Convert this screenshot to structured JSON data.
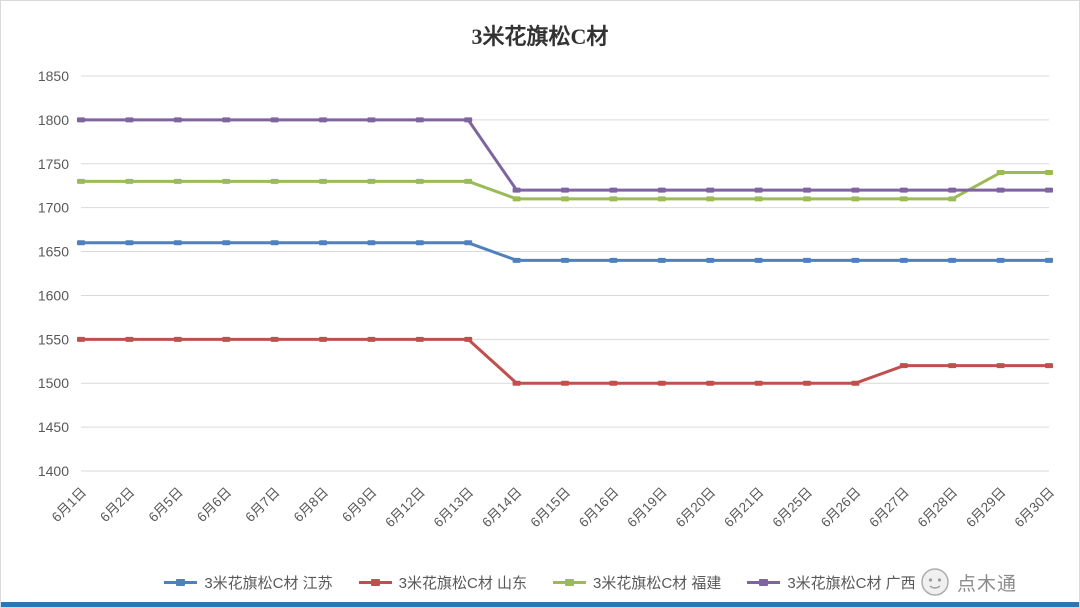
{
  "chart_data": {
    "type": "line",
    "title": "3米花旗松C材",
    "categories": [
      "6月1日",
      "6月2日",
      "6月5日",
      "6月6日",
      "6月7日",
      "6月8日",
      "6月9日",
      "6月12日",
      "6月13日",
      "6月14日",
      "6月15日",
      "6月16日",
      "6月19日",
      "6月20日",
      "6月21日",
      "6月25日",
      "6月26日",
      "6月27日",
      "6月28日",
      "6月29日",
      "6月30日"
    ],
    "series": [
      {
        "name": "3米花旗松C材 江苏",
        "color": "#4F81BD",
        "values": [
          1660,
          1660,
          1660,
          1660,
          1660,
          1660,
          1660,
          1660,
          1660,
          1640,
          1640,
          1640,
          1640,
          1640,
          1640,
          1640,
          1640,
          1640,
          1640,
          1640,
          1640
        ]
      },
      {
        "name": "3米花旗松C材 山东",
        "color": "#C0504D",
        "values": [
          1550,
          1550,
          1550,
          1550,
          1550,
          1550,
          1550,
          1550,
          1550,
          1500,
          1500,
          1500,
          1500,
          1500,
          1500,
          1500,
          1500,
          1520,
          1520,
          1520,
          1520
        ]
      },
      {
        "name": "3米花旗松C材 福建",
        "color": "#9BBB59",
        "values": [
          1730,
          1730,
          1730,
          1730,
          1730,
          1730,
          1730,
          1730,
          1730,
          1710,
          1710,
          1710,
          1710,
          1710,
          1710,
          1710,
          1710,
          1710,
          1710,
          1740,
          1740
        ]
      },
      {
        "name": "3米花旗松C材 广西",
        "color": "#8064A2",
        "values": [
          1800,
          1800,
          1800,
          1800,
          1800,
          1800,
          1800,
          1800,
          1800,
          1720,
          1720,
          1720,
          1720,
          1720,
          1720,
          1720,
          1720,
          1720,
          1720,
          1720,
          1720
        ]
      }
    ],
    "ylim": [
      1400,
      1850
    ],
    "ytick_step": 50,
    "grid": true,
    "legend_position": "bottom"
  },
  "watermark": {
    "text": "点木通"
  },
  "colors": {
    "accent_bar": "#2E75B6",
    "grid": "#D9D9D9",
    "axis_text": "#595959",
    "title_text": "#333333",
    "legend_text": "#595959",
    "watermark_text": "#8C8C8C",
    "background": "#FFFFFF",
    "border": "#D9D9D9"
  }
}
